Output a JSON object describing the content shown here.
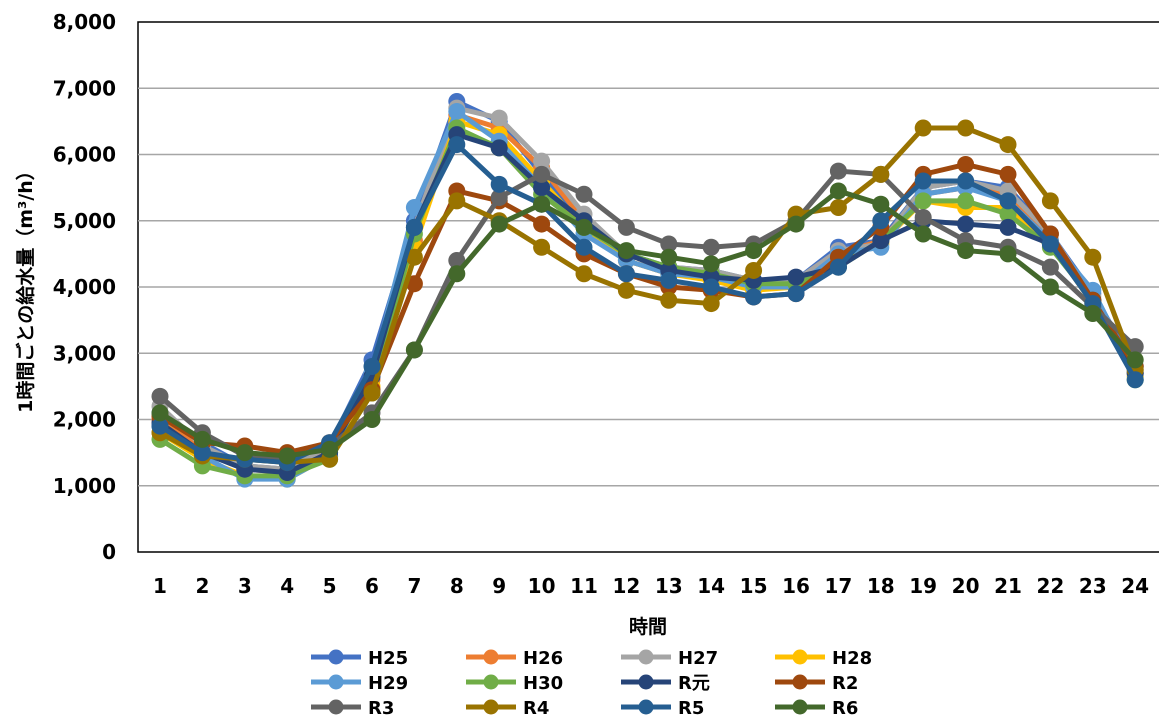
{
  "chart_data": {
    "type": "line",
    "xlabel": "時間",
    "ylabel": "1時間ごとの給水量（m³/h）",
    "ylim": [
      0,
      8000
    ],
    "yticks": [
      "0",
      "1,000",
      "2,000",
      "3,000",
      "4,000",
      "5,000",
      "6,000",
      "7,000",
      "8,000"
    ],
    "x": [
      1,
      2,
      3,
      4,
      5,
      6,
      7,
      8,
      9,
      10,
      11,
      12,
      13,
      14,
      15,
      16,
      17,
      18,
      19,
      20,
      21,
      22,
      23,
      24
    ],
    "grid": true,
    "legend_position": "bottom",
    "series": [
      {
        "name": "H25",
        "color": "#4472C4",
        "values": [
          2100,
          1650,
          1300,
          1250,
          1600,
          2900,
          5000,
          6800,
          6500,
          5700,
          5000,
          4500,
          4300,
          4250,
          4100,
          4100,
          4600,
          4700,
          5500,
          5600,
          5500,
          4800,
          3900,
          2800
        ]
      },
      {
        "name": "H26",
        "color": "#ED7D31",
        "values": [
          2000,
          1550,
          1250,
          1200,
          1550,
          2600,
          4700,
          6600,
          6400,
          5800,
          5000,
          4400,
          4200,
          4150,
          4000,
          4050,
          4500,
          4700,
          5400,
          5500,
          5400,
          4700,
          3800,
          2700
        ]
      },
      {
        "name": "H27",
        "color": "#A5A5A5",
        "values": [
          2200,
          1600,
          1300,
          1250,
          1600,
          2700,
          4900,
          6700,
          6550,
          5900,
          5100,
          4500,
          4300,
          4250,
          4100,
          4100,
          4550,
          4650,
          5500,
          5600,
          5450,
          4800,
          3850,
          2750
        ]
      },
      {
        "name": "H28",
        "color": "#FFC000",
        "values": [
          1800,
          1400,
          1150,
          1100,
          1450,
          2500,
          4600,
          6500,
          6300,
          5600,
          4900,
          4400,
          4200,
          4100,
          3950,
          4000,
          4400,
          4650,
          5300,
          5200,
          5200,
          4650,
          3750,
          2650
        ]
      },
      {
        "name": "H29",
        "color": "#5B9BD5",
        "values": [
          1900,
          1450,
          1100,
          1100,
          1450,
          2700,
          5200,
          6650,
          6200,
          5500,
          4800,
          4400,
          4200,
          4150,
          4000,
          4000,
          4500,
          4600,
          5400,
          5500,
          5300,
          4700,
          3950,
          2700
        ]
      },
      {
        "name": "H30",
        "color": "#70AD47",
        "values": [
          1700,
          1300,
          1150,
          1150,
          1400,
          2400,
          4800,
          6400,
          6100,
          5400,
          4900,
          4500,
          4300,
          4200,
          4050,
          4050,
          4300,
          4700,
          5300,
          5300,
          5100,
          4600,
          3800,
          2600
        ]
      },
      {
        "name": "R元",
        "color": "#264478",
        "values": [
          1950,
          1500,
          1250,
          1200,
          1500,
          2650,
          4900,
          6300,
          6100,
          5500,
          5000,
          4500,
          4250,
          4150,
          4100,
          4150,
          4300,
          4700,
          5000,
          4950,
          4900,
          4650,
          3800,
          2700
        ]
      },
      {
        "name": "R2",
        "color": "#9E480E",
        "values": [
          2050,
          1650,
          1600,
          1500,
          1650,
          2450,
          4050,
          5450,
          5300,
          4950,
          4500,
          4200,
          4000,
          3950,
          3850,
          3900,
          4450,
          4900,
          5700,
          5850,
          5700,
          4800,
          3800,
          2800
        ]
      },
      {
        "name": "R3",
        "color": "#636363",
        "values": [
          2350,
          1800,
          1450,
          1400,
          1600,
          2100,
          3050,
          4400,
          5350,
          5700,
          5400,
          4900,
          4650,
          4600,
          4650,
          5000,
          5750,
          5700,
          5050,
          4700,
          4600,
          4300,
          3700,
          3100
        ]
      },
      {
        "name": "R4",
        "color": "#997300",
        "values": [
          1800,
          1450,
          1400,
          1350,
          1400,
          2400,
          4450,
          5300,
          5000,
          4600,
          4200,
          3950,
          3800,
          3750,
          4250,
          5100,
          5200,
          5700,
          6400,
          6400,
          6150,
          5300,
          4450,
          2750
        ]
      },
      {
        "name": "R5",
        "color": "#255E91",
        "values": [
          1900,
          1500,
          1400,
          1350,
          1650,
          2800,
          4900,
          6150,
          5550,
          5250,
          4600,
          4200,
          4100,
          4000,
          3850,
          3900,
          4300,
          5000,
          5600,
          5600,
          5300,
          4650,
          3750,
          2600
        ]
      },
      {
        "name": "R6",
        "color": "#43682B",
        "values": [
          2100,
          1700,
          1500,
          1450,
          1550,
          2000,
          3050,
          4200,
          4950,
          5250,
          4900,
          4550,
          4450,
          4350,
          4550,
          4950,
          5450,
          5250,
          4800,
          4550,
          4500,
          4000,
          3600,
          2900
        ]
      }
    ]
  }
}
